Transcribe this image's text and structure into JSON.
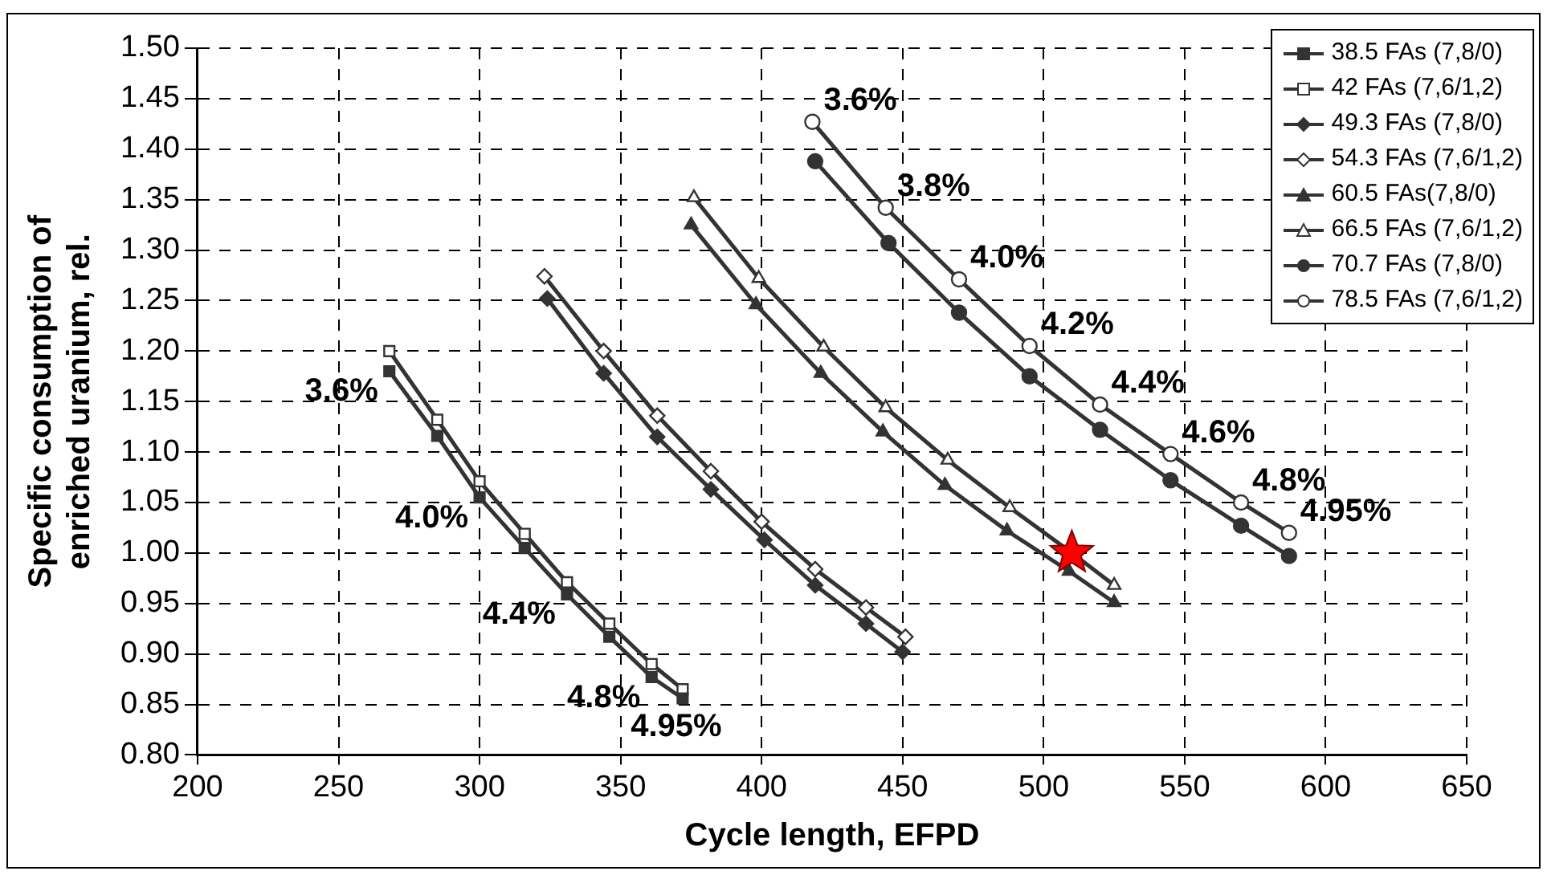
{
  "chart_data": {
    "type": "line",
    "xlabel": "Cycle length, EFPD",
    "ylabel": "Specific consumption of enriched uranium, rel.",
    "xlim": [
      200,
      650
    ],
    "xticks": [
      200,
      250,
      300,
      350,
      400,
      450,
      500,
      550,
      600,
      650
    ],
    "ylim": [
      0.8,
      1.5
    ],
    "yticks": [
      {
        "value": 0.8,
        "label": "0.80"
      },
      0.85,
      {
        "value": 0.9,
        "label": "0.90"
      },
      0.95,
      {
        "value": 1.0,
        "label": "1.00"
      },
      1.05,
      {
        "value": 1.1,
        "label": "1.10"
      },
      1.15,
      {
        "value": 1.2,
        "label": "1.20"
      },
      1.25,
      {
        "value": 1.3,
        "label": "1.30"
      },
      1.35,
      {
        "value": 1.4,
        "label": "1.40"
      },
      1.45,
      {
        "value": 1.5,
        "label": "1.50"
      }
    ],
    "grid": true,
    "line_style": "solid",
    "legend": "top right",
    "series": [
      {
        "name": "38.5 FAs (7,8/0)",
        "color": "#333333",
        "marker": "square",
        "x": [
          268,
          285,
          300,
          316,
          331,
          346,
          361,
          372
        ],
        "values": [
          1.18,
          1.116,
          1.055,
          1.005,
          0.959,
          0.917,
          0.877,
          0.856
        ]
      },
      {
        "name": "42 FAs (7,6/1,2)",
        "color": "#333333",
        "marker": "square",
        "x": [
          268,
          285,
          300,
          316,
          331,
          346,
          361,
          372
        ],
        "values": [
          1.2,
          1.132,
          1.071,
          1.019,
          0.971,
          0.93,
          0.89,
          0.865
        ]
      },
      {
        "name": "49.3 FAs (7,8/0)",
        "color": "#333333",
        "marker": "diamond",
        "x": [
          324,
          344,
          363,
          382,
          401,
          419,
          437,
          450
        ],
        "values": [
          1.252,
          1.178,
          1.115,
          1.063,
          1.013,
          0.968,
          0.93,
          0.902
        ]
      },
      {
        "name": "54.3 FAs (7,6/1,2)",
        "color": "#333333",
        "marker": "diamond",
        "x": [
          323,
          344,
          363,
          382,
          400,
          419,
          437,
          451
        ],
        "values": [
          1.274,
          1.2,
          1.136,
          1.081,
          1.031,
          0.984,
          0.946,
          0.917
        ]
      },
      {
        "name": "60.5 FAs(7,8/0)",
        "color": "#333333",
        "marker": "triangle",
        "x": [
          375,
          398,
          421,
          443,
          465,
          487,
          509,
          525
        ],
        "values": [
          1.325,
          1.246,
          1.178,
          1.12,
          1.067,
          1.022,
          0.982,
          0.951
        ]
      },
      {
        "name": "66.5 FAs (7,6/1,2)",
        "color": "#333333",
        "marker": "triangle",
        "x": [
          376,
          399,
          422,
          444,
          466,
          488,
          510,
          525
        ],
        "values": [
          1.352,
          1.272,
          1.204,
          1.144,
          1.092,
          1.045,
          1.0,
          0.968
        ]
      },
      {
        "name": "70.7 FAs (7,8/0)",
        "color": "#333333",
        "marker": "circle",
        "x": [
          419,
          445,
          470,
          495,
          520,
          545,
          570,
          587
        ],
        "values": [
          1.388,
          1.307,
          1.238,
          1.175,
          1.122,
          1.072,
          1.027,
          0.997
        ]
      },
      {
        "name": "78.5 FAs (7,6/1,2)",
        "color": "#333333",
        "marker": "circle",
        "x": [
          418,
          444,
          470,
          495,
          520,
          545,
          570,
          587
        ],
        "values": [
          1.427,
          1.342,
          1.271,
          1.205,
          1.147,
          1.098,
          1.05,
          1.02
        ]
      },
      {
        "color": "#ff0000",
        "marker": "star",
        "x": [
          510
        ],
        "values": [
          1.0
        ]
      }
    ],
    "annotations": [
      {
        "text": "3.6%",
        "x": 268,
        "y": 1.18
      },
      {
        "text": "4.0%",
        "x": 300,
        "y": 1.055
      },
      {
        "text": "4.4%",
        "x": 331,
        "y": 0.959
      },
      {
        "text": "4.8%",
        "x": 361,
        "y": 0.877
      },
      {
        "text": "4.95%",
        "x": 372,
        "y": 0.856
      },
      {
        "text": "3.6%",
        "x": 418,
        "y": 1.427
      },
      {
        "text": "3.8%",
        "x": 444,
        "y": 1.342
      },
      {
        "text": "4.0%",
        "x": 470,
        "y": 1.271
      },
      {
        "text": "4.2%",
        "x": 495,
        "y": 1.205
      },
      {
        "text": "4.4%",
        "x": 520,
        "y": 1.147
      },
      {
        "text": "4.6%",
        "x": 545,
        "y": 1.098
      },
      {
        "text": "4.8%",
        "x": 570,
        "y": 1.05
      },
      {
        "text": "4.95%",
        "x": 587,
        "y": 1.02
      }
    ]
  }
}
